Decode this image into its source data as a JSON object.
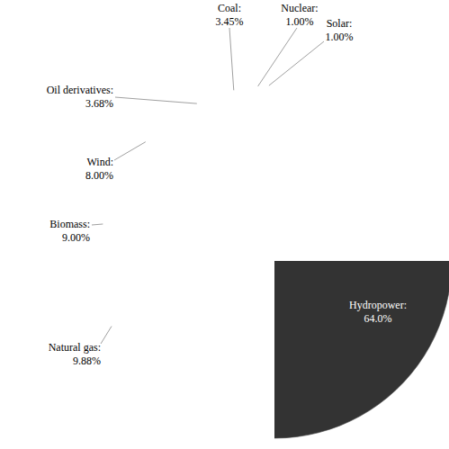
{
  "chart_data": {
    "type": "pie",
    "categories": [
      "Hydropower:",
      "Natural gas:",
      "Biomass:",
      "Wind:",
      "Oil derivatives:",
      "Coal:",
      "Nuclear:",
      "Solar:"
    ],
    "values": [
      64.0,
      9.88,
      9.0,
      8.0,
      3.68,
      3.45,
      1.0,
      1.0
    ],
    "value_labels": [
      "64.0%",
      "9.88%",
      "9.00%",
      "8.00%",
      "3.68%",
      "3.45%",
      "1.00%",
      "1.00%"
    ],
    "colors": [
      "#333333",
      "#ffffff",
      "#6e6e6e",
      "#ececec",
      "#ffffff",
      "#c4c4c4",
      "#ffffff",
      "#ffffff"
    ],
    "data_labels": true
  }
}
